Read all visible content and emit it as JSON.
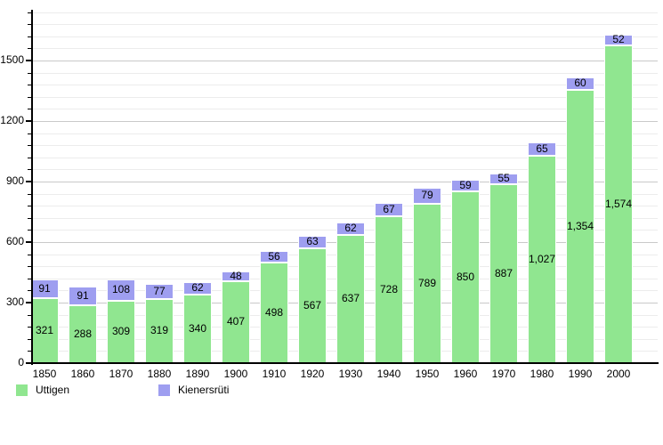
{
  "chart_data": {
    "type": "bar",
    "stacked": true,
    "title": "",
    "xlabel": "",
    "ylabel": "",
    "categories": [
      "1850",
      "1860",
      "1870",
      "1880",
      "1890",
      "1900",
      "1910",
      "1920",
      "1930",
      "1940",
      "1950",
      "1960",
      "1970",
      "1980",
      "1990",
      "2000"
    ],
    "series": [
      {
        "name": "Uttigen",
        "color": "#90e690",
        "values": [
          321,
          288,
          309,
          319,
          340,
          407,
          498,
          567,
          637,
          728,
          789,
          850,
          887,
          1027,
          1354,
          1574
        ],
        "value_labels": [
          "321",
          "288",
          "309",
          "319",
          "340",
          "407",
          "498",
          "567",
          "637",
          "728",
          "789",
          "850",
          "887",
          "1,027",
          "1,354",
          "1,574"
        ]
      },
      {
        "name": "Kienersrüti",
        "color": "#9e9ef0",
        "values": [
          91,
          91,
          108,
          77,
          62,
          48,
          56,
          63,
          62,
          67,
          79,
          59,
          55,
          65,
          60,
          52
        ],
        "value_labels": [
          "91",
          "91",
          "108",
          "77",
          "62",
          "48",
          "56",
          "63",
          "62",
          "67",
          "79",
          "59",
          "55",
          "65",
          "60",
          "52"
        ]
      }
    ],
    "y_axis": {
      "tick_values": [
        0,
        300,
        600,
        900,
        1200,
        1500
      ],
      "tick_labels": [
        "0",
        "300",
        "600",
        "900",
        "1200",
        "1500"
      ],
      "minor_step": 60,
      "major_step": 300,
      "max": 1740
    },
    "ylim": [
      0,
      1750
    ],
    "grid": true,
    "legend_position": "bottom-left",
    "colors": {
      "axis": "#000000",
      "major_grid": "#c9c9c9",
      "minor_grid": "#ececec",
      "text": "#000000",
      "background": "#ffffff",
      "segment_border": "#ffffff"
    }
  }
}
